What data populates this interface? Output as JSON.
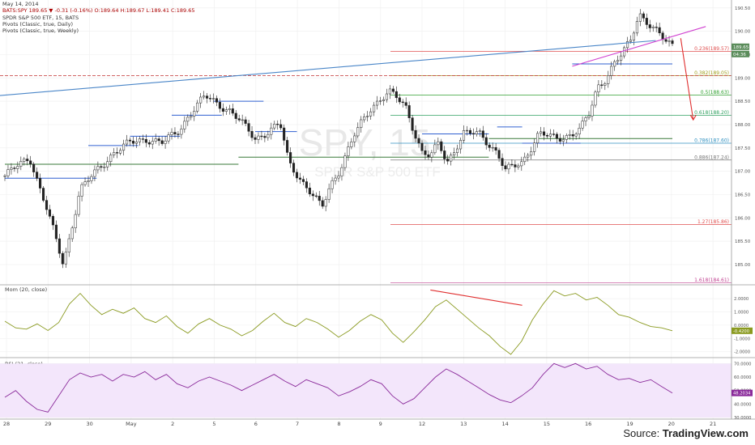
{
  "header": {
    "date": "May 14, 2014",
    "symbol_line": "BATS:SPY 189.65 ▼ -0.31 (-0.16%) O:189.64 H:189.67 L:189.41 C:189.65",
    "name_line": "SPDR S&P 500 ETF, 15, BATS",
    "pivots_daily": "Pivots (Classic, true, Daily)",
    "pivots_weekly": "Pivots (Classic, true, Weekly)"
  },
  "source": {
    "prefix": "Source: ",
    "brand": "TradingView.com"
  },
  "watermark": {
    "symbol": "SPY, 15",
    "name": "SPDR S&P 500 ETF"
  },
  "chart_data": [
    {
      "type": "candlestick",
      "title": "SPDR S&P 500 ETF, 15, BATS",
      "x_tick_labels": [
        "28",
        "29",
        "30",
        "May",
        "2",
        "5",
        "6",
        "7",
        "8",
        "9",
        "12",
        "13",
        "14",
        "15",
        "16",
        "19",
        "20",
        "21"
      ],
      "ylim": [
        184.6,
        190.6
      ],
      "y_tick_labels": [
        "190.50",
        "190.00",
        "189.50",
        "189.00",
        "188.50",
        "188.00",
        "187.50",
        "187.00",
        "186.50",
        "186.00",
        "185.50",
        "185.00"
      ],
      "price_labels": {
        "last": "189.65",
        "countdown": "04:36"
      },
      "fibonacci_levels": [
        {
          "label": "0.236(189.57)",
          "value": 189.57,
          "color": "#e05050"
        },
        {
          "label": "0.382(189.05)",
          "value": 189.05,
          "color": "#a0a020"
        },
        {
          "label": "0.5(188.63)",
          "value": 188.63,
          "color": "#30a030"
        },
        {
          "label": "0.618(188.20)",
          "value": 188.2,
          "color": "#30a060"
        },
        {
          "label": "0.786(187.60)",
          "value": 187.6,
          "color": "#3090c0"
        },
        {
          "label": "0.886(187.24)",
          "value": 187.24,
          "color": "#777777"
        },
        {
          "label": "1.27(185.86)",
          "value": 185.86,
          "color": "#e05050"
        },
        {
          "label": "1.618(184.61)",
          "value": 184.61,
          "color": "#c04090"
        }
      ],
      "close_path": [
        [
          0,
          186.9
        ],
        [
          3,
          187.3
        ],
        [
          5,
          186.2
        ],
        [
          7,
          185.0
        ],
        [
          9,
          186.6
        ],
        [
          11,
          187.0
        ],
        [
          13,
          187.4
        ],
        [
          15,
          187.6
        ],
        [
          17,
          187.7
        ],
        [
          19,
          187.6
        ],
        [
          21,
          187.9
        ],
        [
          22,
          188.2
        ],
        [
          24,
          188.6
        ],
        [
          26,
          188.4
        ],
        [
          27,
          188.3
        ],
        [
          28,
          188.1
        ],
        [
          30,
          187.7
        ],
        [
          31,
          187.8
        ],
        [
          33,
          188.0
        ],
        [
          34,
          187.2
        ],
        [
          36,
          186.7
        ],
        [
          38,
          186.2
        ],
        [
          39,
          186.7
        ],
        [
          40,
          187.0
        ],
        [
          42,
          187.8
        ],
        [
          44,
          188.4
        ],
        [
          46,
          188.7
        ],
        [
          48,
          188.4
        ],
        [
          49,
          187.9
        ],
        [
          50,
          187.4
        ],
        [
          51,
          187.3
        ],
        [
          52,
          187.6
        ],
        [
          53,
          187.2
        ],
        [
          55,
          187.8
        ],
        [
          57,
          187.8
        ],
        [
          59,
          187.4
        ],
        [
          60,
          187.0
        ],
        [
          62,
          187.2
        ],
        [
          64,
          187.8
        ],
        [
          66,
          187.7
        ],
        [
          68,
          187.8
        ],
        [
          69,
          187.9
        ],
        [
          70,
          188.2
        ],
        [
          71,
          188.8
        ],
        [
          72,
          189.0
        ],
        [
          73,
          189.3
        ],
        [
          74,
          189.5
        ],
        [
          75,
          189.8
        ],
        [
          76,
          190.4
        ],
        [
          77,
          190.2
        ],
        [
          78,
          190.0
        ],
        [
          79,
          189.8
        ],
        [
          80,
          189.7
        ]
      ],
      "trend_lines": [
        {
          "name": "rising trendline",
          "from": [
            -2,
            188.6
          ],
          "to": [
            78,
            189.8
          ],
          "color": "#4a86c8"
        },
        {
          "name": "rising wedge line",
          "from": [
            68,
            189.25
          ],
          "to": [
            84,
            190.1
          ],
          "color": "#d040d0"
        },
        {
          "name": "projection arrow",
          "from": [
            81,
            189.85
          ],
          "to": [
            82.5,
            188.1
          ],
          "color": "#e03030"
        }
      ],
      "horizontal_reference": {
        "value": 189.05,
        "style": "dashed",
        "color": "#c03030"
      }
    },
    {
      "type": "line",
      "title": "Mom (20, close)",
      "ylim": [
        -2.2,
        2.8
      ],
      "y_tick_labels": [
        "2.0000",
        "1.0000",
        "0.0000",
        "-1.0000",
        "-2.0000"
      ],
      "last_label": "-0.4200",
      "values": [
        0.3,
        -0.2,
        -0.3,
        0.1,
        -0.4,
        0.2,
        1.6,
        2.4,
        1.5,
        0.8,
        1.2,
        0.9,
        1.3,
        0.5,
        0.2,
        0.7,
        -0.1,
        -0.6,
        0.1,
        0.5,
        0.0,
        -0.3,
        -0.8,
        -0.4,
        0.3,
        0.9,
        0.2,
        -0.1,
        0.5,
        0.2,
        -0.3,
        -0.9,
        -0.4,
        0.3,
        0.8,
        0.4,
        -0.6,
        -1.3,
        -0.5,
        0.4,
        1.4,
        1.9,
        1.2,
        0.5,
        -0.2,
        -0.8,
        -1.6,
        -2.2,
        -1.2,
        0.4,
        1.6,
        2.6,
        2.2,
        2.4,
        1.9,
        2.1,
        1.5,
        0.8,
        0.6,
        0.2,
        -0.1,
        -0.2,
        -0.42
      ],
      "divergence_line": {
        "from": [
          51,
          2.65
        ],
        "to": [
          62,
          1.5
        ],
        "color": "#e03030"
      }
    },
    {
      "type": "line",
      "title": "RSI (21, close)",
      "ylim": [
        30,
        72
      ],
      "y_tick_labels": [
        "70.0000",
        "60.0000",
        "50.0000",
        "40.0000",
        "30.0000"
      ],
      "last_label": "48.2034",
      "values": [
        45,
        50,
        42,
        36,
        34,
        46,
        58,
        63,
        60,
        62,
        57,
        62,
        60,
        64,
        58,
        62,
        55,
        52,
        57,
        60,
        57,
        54,
        50,
        54,
        58,
        62,
        57,
        53,
        58,
        55,
        52,
        46,
        49,
        53,
        58,
        55,
        46,
        40,
        44,
        52,
        60,
        66,
        62,
        57,
        52,
        47,
        43,
        41,
        46,
        52,
        62,
        70,
        67,
        70,
        66,
        68,
        62,
        58,
        59,
        56,
        58,
        53,
        48.2
      ],
      "band": [
        30,
        70
      ]
    }
  ]
}
